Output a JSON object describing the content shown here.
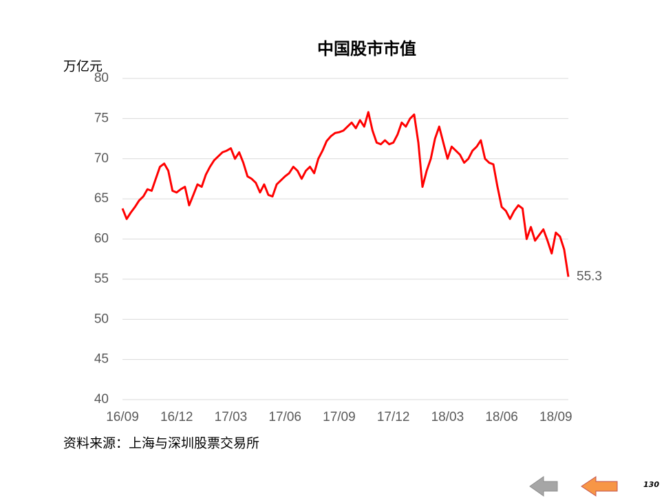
{
  "chart_data": {
    "type": "line",
    "title": "中国股市市值",
    "y_label": "万亿元",
    "source": "资料来源：上海与深圳股票交易所",
    "categories": [
      "16/09",
      null,
      null,
      null,
      null,
      null,
      null,
      null,
      null,
      null,
      null,
      null,
      null,
      "16/12",
      null,
      null,
      null,
      null,
      null,
      null,
      null,
      null,
      null,
      null,
      null,
      null,
      "17/03",
      null,
      null,
      null,
      null,
      null,
      null,
      null,
      null,
      null,
      null,
      null,
      null,
      "17/06",
      null,
      null,
      null,
      null,
      null,
      null,
      null,
      null,
      null,
      null,
      null,
      null,
      "17/09",
      null,
      null,
      null,
      null,
      null,
      null,
      null,
      null,
      null,
      null,
      null,
      null,
      "17/12",
      null,
      null,
      null,
      null,
      null,
      null,
      null,
      null,
      null,
      null,
      null,
      null,
      "18/03",
      null,
      null,
      null,
      null,
      null,
      null,
      null,
      null,
      null,
      null,
      null,
      null,
      "18/06",
      null,
      null,
      null,
      null,
      null,
      null,
      null,
      null,
      null,
      null,
      null,
      null,
      "18/09",
      null,
      null,
      null
    ],
    "series": [
      {
        "name": "中国股市市值",
        "color": "#ff0000",
        "values": [
          63.8,
          62.5,
          63.3,
          64,
          64.8,
          65.3,
          66.2,
          66,
          67.5,
          69,
          69.4,
          68.5,
          66,
          65.8,
          66.2,
          66.5,
          64.2,
          65.5,
          66.8,
          66.5,
          68,
          69,
          69.8,
          70.3,
          70.8,
          71,
          71.3,
          70,
          70.8,
          69.5,
          67.8,
          67.5,
          67,
          65.8,
          66.8,
          65.5,
          65.3,
          66.8,
          67.3,
          67.8,
          68.2,
          69,
          68.5,
          67.5,
          68.5,
          69,
          68.2,
          70,
          71,
          72.2,
          72.8,
          73.2,
          73.3,
          73.5,
          74,
          74.5,
          73.8,
          74.8,
          74,
          75.8,
          73.5,
          72,
          71.8,
          72.3,
          71.8,
          72,
          73,
          74.5,
          74,
          75,
          75.5,
          72,
          66.5,
          68.5,
          70,
          72.5,
          74,
          72,
          70,
          71.5,
          71,
          70.5,
          69.5,
          70,
          71,
          71.5,
          72.3,
          70,
          69.5,
          69.3,
          66.5,
          64,
          63.5,
          62.5,
          63.5,
          64.2,
          63.8,
          60,
          61.5,
          59.8,
          60.5,
          61.2,
          59.8,
          58.2,
          60.8,
          60.3,
          58.7,
          55.3
        ]
      }
    ],
    "ylim": [
      40,
      80
    ],
    "yticks": [
      40,
      45,
      50,
      55,
      60,
      65,
      70,
      75,
      80
    ],
    "grid": true
  },
  "page_number": "130"
}
